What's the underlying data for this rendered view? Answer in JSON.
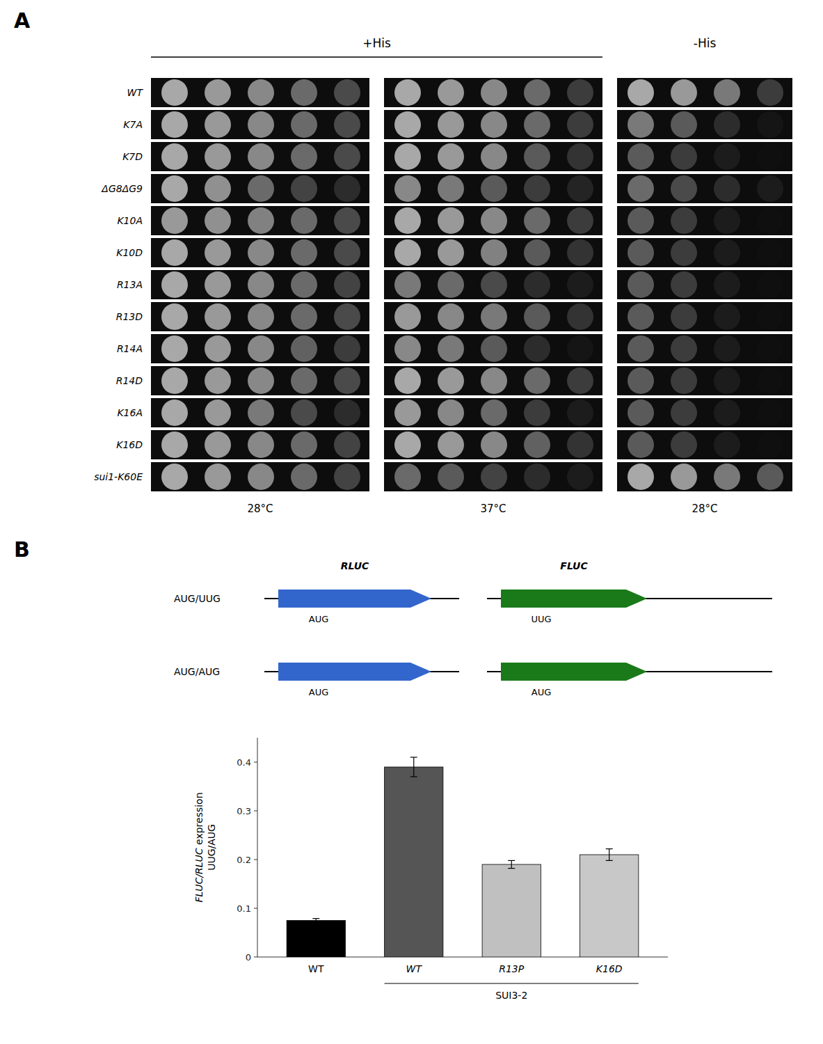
{
  "chart_data": [
    {
      "type": "heatmap",
      "title": "A",
      "categories": [
        "WT",
        "K7A",
        "K7D",
        "ΔG8ΔG9",
        "K10A",
        "K10D",
        "R13A",
        "R13D",
        "R14A",
        "R14D",
        "K16A",
        "K16D",
        "sui1-K60E"
      ],
      "groups": [
        {
          "name": "+His",
          "series": [
            {
              "name": "28°C",
              "values": [
                [
                  1.0,
                  0.9,
                  0.8,
                  0.6,
                  0.4
                ],
                [
                  1.0,
                  0.9,
                  0.8,
                  0.6,
                  0.4
                ],
                [
                  1.0,
                  0.9,
                  0.8,
                  0.6,
                  0.4
                ],
                [
                  1.0,
                  0.85,
                  0.6,
                  0.35,
                  0.2
                ],
                [
                  0.9,
                  0.85,
                  0.75,
                  0.6,
                  0.4
                ],
                [
                  1.0,
                  0.9,
                  0.8,
                  0.6,
                  0.4
                ],
                [
                  1.0,
                  0.9,
                  0.8,
                  0.6,
                  0.35
                ],
                [
                  1.0,
                  0.9,
                  0.8,
                  0.6,
                  0.4
                ],
                [
                  1.0,
                  0.9,
                  0.8,
                  0.55,
                  0.3
                ],
                [
                  1.0,
                  0.9,
                  0.8,
                  0.6,
                  0.4
                ],
                [
                  1.0,
                  0.9,
                  0.7,
                  0.4,
                  0.2
                ],
                [
                  1.0,
                  0.9,
                  0.8,
                  0.6,
                  0.35
                ],
                [
                  1.0,
                  0.9,
                  0.8,
                  0.6,
                  0.35
                ]
              ]
            },
            {
              "name": "37°C",
              "values": [
                [
                  1.0,
                  0.9,
                  0.8,
                  0.6,
                  0.3
                ],
                [
                  1.0,
                  0.9,
                  0.8,
                  0.6,
                  0.3
                ],
                [
                  1.0,
                  0.9,
                  0.8,
                  0.5,
                  0.25
                ],
                [
                  0.8,
                  0.7,
                  0.5,
                  0.3,
                  0.15
                ],
                [
                  1.0,
                  0.9,
                  0.8,
                  0.6,
                  0.3
                ],
                [
                  1.0,
                  0.9,
                  0.75,
                  0.5,
                  0.25
                ],
                [
                  0.7,
                  0.6,
                  0.4,
                  0.2,
                  0.1
                ],
                [
                  0.9,
                  0.8,
                  0.7,
                  0.5,
                  0.25
                ],
                [
                  0.8,
                  0.7,
                  0.5,
                  0.2,
                  0.05
                ],
                [
                  1.0,
                  0.9,
                  0.8,
                  0.6,
                  0.3
                ],
                [
                  0.9,
                  0.8,
                  0.6,
                  0.3,
                  0.1
                ],
                [
                  1.0,
                  0.9,
                  0.8,
                  0.55,
                  0.25
                ],
                [
                  0.6,
                  0.5,
                  0.35,
                  0.2,
                  0.1
                ]
              ]
            }
          ]
        },
        {
          "name": "-His",
          "series": [
            {
              "name": "28°C",
              "values": [
                [
                  1.0,
                  0.9,
                  0.7,
                  0.3
                ],
                [
                  0.7,
                  0.5,
                  0.2,
                  0.05
                ],
                [
                  0.5,
                  0.3,
                  0.1,
                  0.02
                ],
                [
                  0.6,
                  0.4,
                  0.2,
                  0.1
                ],
                [
                  0.5,
                  0.3,
                  0.1,
                  0.02
                ],
                [
                  0.5,
                  0.3,
                  0.1,
                  0.02
                ],
                [
                  0.5,
                  0.3,
                  0.1,
                  0.02
                ],
                [
                  0.5,
                  0.3,
                  0.1,
                  0.02
                ],
                [
                  0.5,
                  0.3,
                  0.1,
                  0.02
                ],
                [
                  0.5,
                  0.3,
                  0.1,
                  0.02
                ],
                [
                  0.5,
                  0.3,
                  0.1,
                  0.02
                ],
                [
                  0.5,
                  0.3,
                  0.1,
                  0.02
                ],
                [
                  1.0,
                  0.9,
                  0.7,
                  0.5
                ]
              ]
            }
          ]
        }
      ]
    },
    {
      "type": "diagram",
      "title": "B",
      "rows": [
        {
          "name": "AUG/UUG",
          "codons": [
            "AUG",
            "UUG"
          ]
        },
        {
          "name": "AUG/AUG",
          "codons": [
            "AUG",
            "AUG"
          ]
        }
      ],
      "genes": [
        {
          "name": "RLUC",
          "color": "#3366cc"
        },
        {
          "name": "FLUC",
          "color": "#1a7a1a"
        }
      ]
    },
    {
      "type": "bar",
      "categories": [
        "WT",
        "WT",
        "R13P",
        "K16D"
      ],
      "values": [
        0.075,
        0.39,
        0.19,
        0.21
      ],
      "errors": [
        0.004,
        0.02,
        0.008,
        0.012
      ],
      "colors": [
        "#000000",
        "#555555",
        "#c0c0c0",
        "#c8c8c8"
      ],
      "ylabel": "FLUC/RLUC expression\nUUG/AUG",
      "ylim": [
        0,
        0.45
      ],
      "yticks": [
        0,
        0.1,
        0.2,
        0.3,
        0.4
      ],
      "annotations": [
        {
          "text": "SUI3-2",
          "from": 1,
          "to": 3
        }
      ],
      "grid": false
    }
  ]
}
